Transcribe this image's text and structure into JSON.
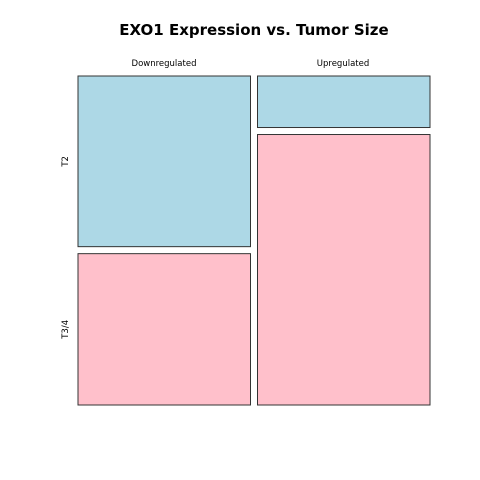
{
  "chart_data": {
    "type": "mosaic",
    "title": "EXO1 Expression vs. Tumor Size",
    "columns": [
      "Downregulated",
      "Upregulated"
    ],
    "rows": [
      "T2",
      "T3/4"
    ],
    "column_proportions": [
      0.5,
      0.5
    ],
    "cells": [
      {
        "column": "Downregulated",
        "row": "T2",
        "proportion_within_column": 0.53,
        "color": "#add8e6"
      },
      {
        "column": "Downregulated",
        "row": "T3/4",
        "proportion_within_column": 0.47,
        "color": "#ffc0cb"
      },
      {
        "column": "Upregulated",
        "row": "T2",
        "proportion_within_column": 0.16,
        "color": "#add8e6"
      },
      {
        "column": "Upregulated",
        "row": "T3/4",
        "proportion_within_column": 0.84,
        "color": "#ffc0cb"
      }
    ]
  }
}
